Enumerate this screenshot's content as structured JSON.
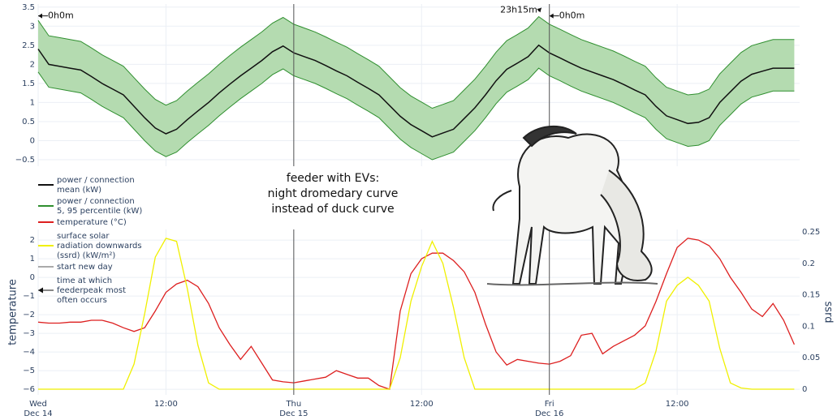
{
  "chart_data": [
    {
      "type": "band-line",
      "x": [
        0,
        1,
        2,
        3,
        4,
        5,
        6,
        7,
        8,
        9,
        10,
        11,
        12,
        13,
        14,
        15,
        16,
        17,
        18,
        19,
        20,
        21,
        22,
        23,
        24,
        25,
        26,
        27,
        28,
        29,
        30,
        31,
        32,
        33,
        34,
        35,
        36,
        37,
        38,
        39,
        40,
        41,
        42,
        43,
        44,
        45,
        46,
        47,
        48,
        49,
        50,
        51,
        52,
        53,
        54,
        55,
        56,
        57,
        58,
        59,
        60,
        61,
        62,
        63,
        64,
        65,
        66,
        67,
        68,
        69,
        70,
        71
      ],
      "xlim": [
        0,
        71.5
      ],
      "xticks": [
        {
          "value": 0,
          "label": [
            "Wed",
            "Dec 14"
          ]
        },
        {
          "value": 12,
          "label": "12:00"
        },
        {
          "value": 24,
          "label": [
            "Thu",
            "Dec 15"
          ]
        },
        {
          "value": 36,
          "label": "12:00"
        },
        {
          "value": 48,
          "label": [
            "Fri",
            "Dec 16"
          ]
        },
        {
          "value": 60,
          "label": "12:00"
        }
      ],
      "ylim": [
        -0.67,
        3.58
      ],
      "yticks": [
        {
          "value": -0.5,
          "label": "−0.5"
        },
        0,
        0.5,
        1,
        1.5,
        2,
        2.5,
        3,
        3.5
      ],
      "grid": true,
      "series": [
        {
          "name": [
            "power / connection",
            "mean (kW)"
          ],
          "color": "#111111",
          "values": [
            2.4,
            2.0,
            1.95,
            1.9,
            1.85,
            1.68,
            1.5,
            1.35,
            1.2,
            0.9,
            0.6,
            0.33,
            0.18,
            0.3,
            0.55,
            0.78,
            1.0,
            1.25,
            1.48,
            1.7,
            1.9,
            2.1,
            2.33,
            2.48,
            2.3,
            2.2,
            2.1,
            1.97,
            1.83,
            1.7,
            1.53,
            1.37,
            1.2,
            0.92,
            0.64,
            0.42,
            0.26,
            0.1,
            0.2,
            0.3,
            0.58,
            0.86,
            1.2,
            1.57,
            1.87,
            2.03,
            2.2,
            2.5,
            2.3,
            2.17,
            2.03,
            1.9,
            1.8,
            1.7,
            1.6,
            1.47,
            1.33,
            1.2,
            0.9,
            0.65,
            0.55,
            0.45,
            0.48,
            0.6,
            1.0,
            1.28,
            1.56,
            1.74,
            1.82,
            1.9,
            1.9,
            1.9
          ]
        },
        {
          "name": [
            "power / connection",
            "5, 95 percentile (kW)"
          ],
          "color": "#2f8f2f",
          "fill": "#b4dbb0",
          "upper": [
            3.15,
            2.75,
            2.7,
            2.65,
            2.6,
            2.43,
            2.25,
            2.1,
            1.95,
            1.65,
            1.35,
            1.08,
            0.93,
            1.05,
            1.3,
            1.53,
            1.75,
            2.0,
            2.23,
            2.45,
            2.65,
            2.85,
            3.08,
            3.23,
            3.05,
            2.95,
            2.85,
            2.72,
            2.58,
            2.45,
            2.28,
            2.12,
            1.95,
            1.67,
            1.39,
            1.17,
            1.01,
            0.85,
            0.95,
            1.05,
            1.33,
            1.61,
            1.95,
            2.32,
            2.62,
            2.78,
            2.95,
            3.25,
            3.05,
            2.92,
            2.78,
            2.65,
            2.55,
            2.45,
            2.35,
            2.22,
            2.08,
            1.95,
            1.65,
            1.4,
            1.3,
            1.2,
            1.23,
            1.35,
            1.75,
            2.03,
            2.31,
            2.49,
            2.57,
            2.65,
            2.65,
            2.65
          ],
          "lower": [
            1.8,
            1.4,
            1.35,
            1.3,
            1.25,
            1.08,
            0.9,
            0.75,
            0.6,
            0.3,
            0.0,
            -0.27,
            -0.42,
            -0.3,
            -0.05,
            0.18,
            0.4,
            0.65,
            0.88,
            1.1,
            1.3,
            1.5,
            1.73,
            1.88,
            1.7,
            1.6,
            1.5,
            1.37,
            1.23,
            1.1,
            0.93,
            0.77,
            0.6,
            0.32,
            0.04,
            -0.18,
            -0.34,
            -0.5,
            -0.4,
            -0.3,
            -0.02,
            0.26,
            0.6,
            0.97,
            1.27,
            1.43,
            1.6,
            1.9,
            1.7,
            1.57,
            1.43,
            1.3,
            1.2,
            1.1,
            1.0,
            0.87,
            0.73,
            0.6,
            0.3,
            0.05,
            -0.05,
            -0.15,
            -0.12,
            0.0,
            0.4,
            0.68,
            0.96,
            1.14,
            1.22,
            1.3,
            1.3,
            1.3
          ]
        },
        {
          "name": [
            "start new day"
          ],
          "color": "#555555",
          "x": [
            24,
            48
          ]
        },
        {
          "name": [
            "time at which",
            "feederpeak most",
            "often occurs"
          ],
          "color": "#111111",
          "x": [
            0,
            47.25,
            48
          ],
          "values": [
            3.27,
            3.48,
            3.27
          ],
          "labels": [
            "0h0m",
            "23h15m",
            "0h0m"
          ]
        }
      ],
      "annotations": [
        "feeder with EVs:",
        "night dromedary curve",
        "instead of duck curve"
      ]
    },
    {
      "type": "line",
      "x": [
        0,
        1,
        2,
        3,
        4,
        5,
        6,
        7,
        8,
        9,
        10,
        11,
        12,
        13,
        14,
        15,
        16,
        17,
        18,
        19,
        20,
        21,
        22,
        23,
        24,
        25,
        26,
        27,
        28,
        29,
        30,
        31,
        32,
        33,
        34,
        35,
        36,
        37,
        38,
        39,
        40,
        41,
        42,
        43,
        44,
        45,
        46,
        47,
        48,
        49,
        50,
        51,
        52,
        53,
        54,
        55,
        56,
        57,
        58,
        59,
        60,
        61,
        62,
        63,
        64,
        65,
        66,
        67,
        68,
        69,
        70,
        71
      ],
      "xlim": [
        0,
        71.5
      ],
      "ylabel": "temperature",
      "y2label": "ssrd",
      "ylim": [
        -6.3,
        2.57
      ],
      "yticks": [
        {
          "value": -6,
          "label": "−6"
        },
        {
          "value": -5,
          "label": "−5"
        },
        {
          "value": -4,
          "label": "−4"
        },
        {
          "value": -3,
          "label": "−3"
        },
        {
          "value": -2,
          "label": "−2"
        },
        {
          "value": -1,
          "label": "−1"
        },
        0,
        1,
        2
      ],
      "y2lim": [
        -0.009,
        0.254
      ],
      "y2ticks": [
        0,
        0.05,
        0.1,
        0.15,
        0.2,
        0.25
      ],
      "grid": true,
      "series": [
        {
          "name": [
            "temperature (°C)"
          ],
          "color": "#dd1f1f",
          "values": [
            -2.4,
            -2.45,
            -2.45,
            -2.4,
            -2.4,
            -2.3,
            -2.3,
            -2.45,
            -2.7,
            -2.9,
            -2.7,
            -1.8,
            -0.8,
            -0.35,
            -0.15,
            -0.5,
            -1.4,
            -2.7,
            -3.6,
            -4.4,
            -3.7,
            -4.6,
            -5.5,
            -5.6,
            -5.65,
            -5.55,
            -5.45,
            -5.35,
            -5.0,
            -5.2,
            -5.4,
            -5.4,
            -5.8,
            -6.0,
            -1.8,
            0.2,
            1.0,
            1.3,
            1.3,
            0.9,
            0.3,
            -0.8,
            -2.5,
            -4.0,
            -4.7,
            -4.4,
            -4.5,
            -4.6,
            -4.65,
            -4.5,
            -4.2,
            -3.1,
            -3.0,
            -4.1,
            -3.7,
            -3.4,
            -3.1,
            -2.6,
            -1.3,
            0.2,
            1.6,
            2.1,
            2.0,
            1.7,
            1.0,
            0.0,
            -0.8,
            -1.7,
            -2.1,
            -1.4,
            -2.3,
            -3.6
          ]
        },
        {
          "name": [
            "surface solar",
            "radiation downwards",
            "(ssrd) (kW/m²)"
          ],
          "color": "#f0f000",
          "axis": "y2",
          "values": [
            0,
            0,
            0,
            0,
            0,
            0,
            0,
            0,
            0,
            0.04,
            0.12,
            0.21,
            0.24,
            0.235,
            0.16,
            0.07,
            0.01,
            0,
            0,
            0,
            0,
            0,
            0,
            0,
            0,
            0,
            0,
            0,
            0,
            0,
            0,
            0,
            0,
            0,
            0.05,
            0.14,
            0.195,
            0.235,
            0.2,
            0.13,
            0.05,
            0,
            0,
            0,
            0,
            0,
            0,
            0,
            0,
            0,
            0,
            0,
            0,
            0,
            0,
            0,
            0,
            0.01,
            0.06,
            0.14,
            0.165,
            0.178,
            0.165,
            0.14,
            0.065,
            0.01,
            0.002,
            0,
            0,
            0,
            0,
            0
          ]
        }
      ]
    }
  ]
}
